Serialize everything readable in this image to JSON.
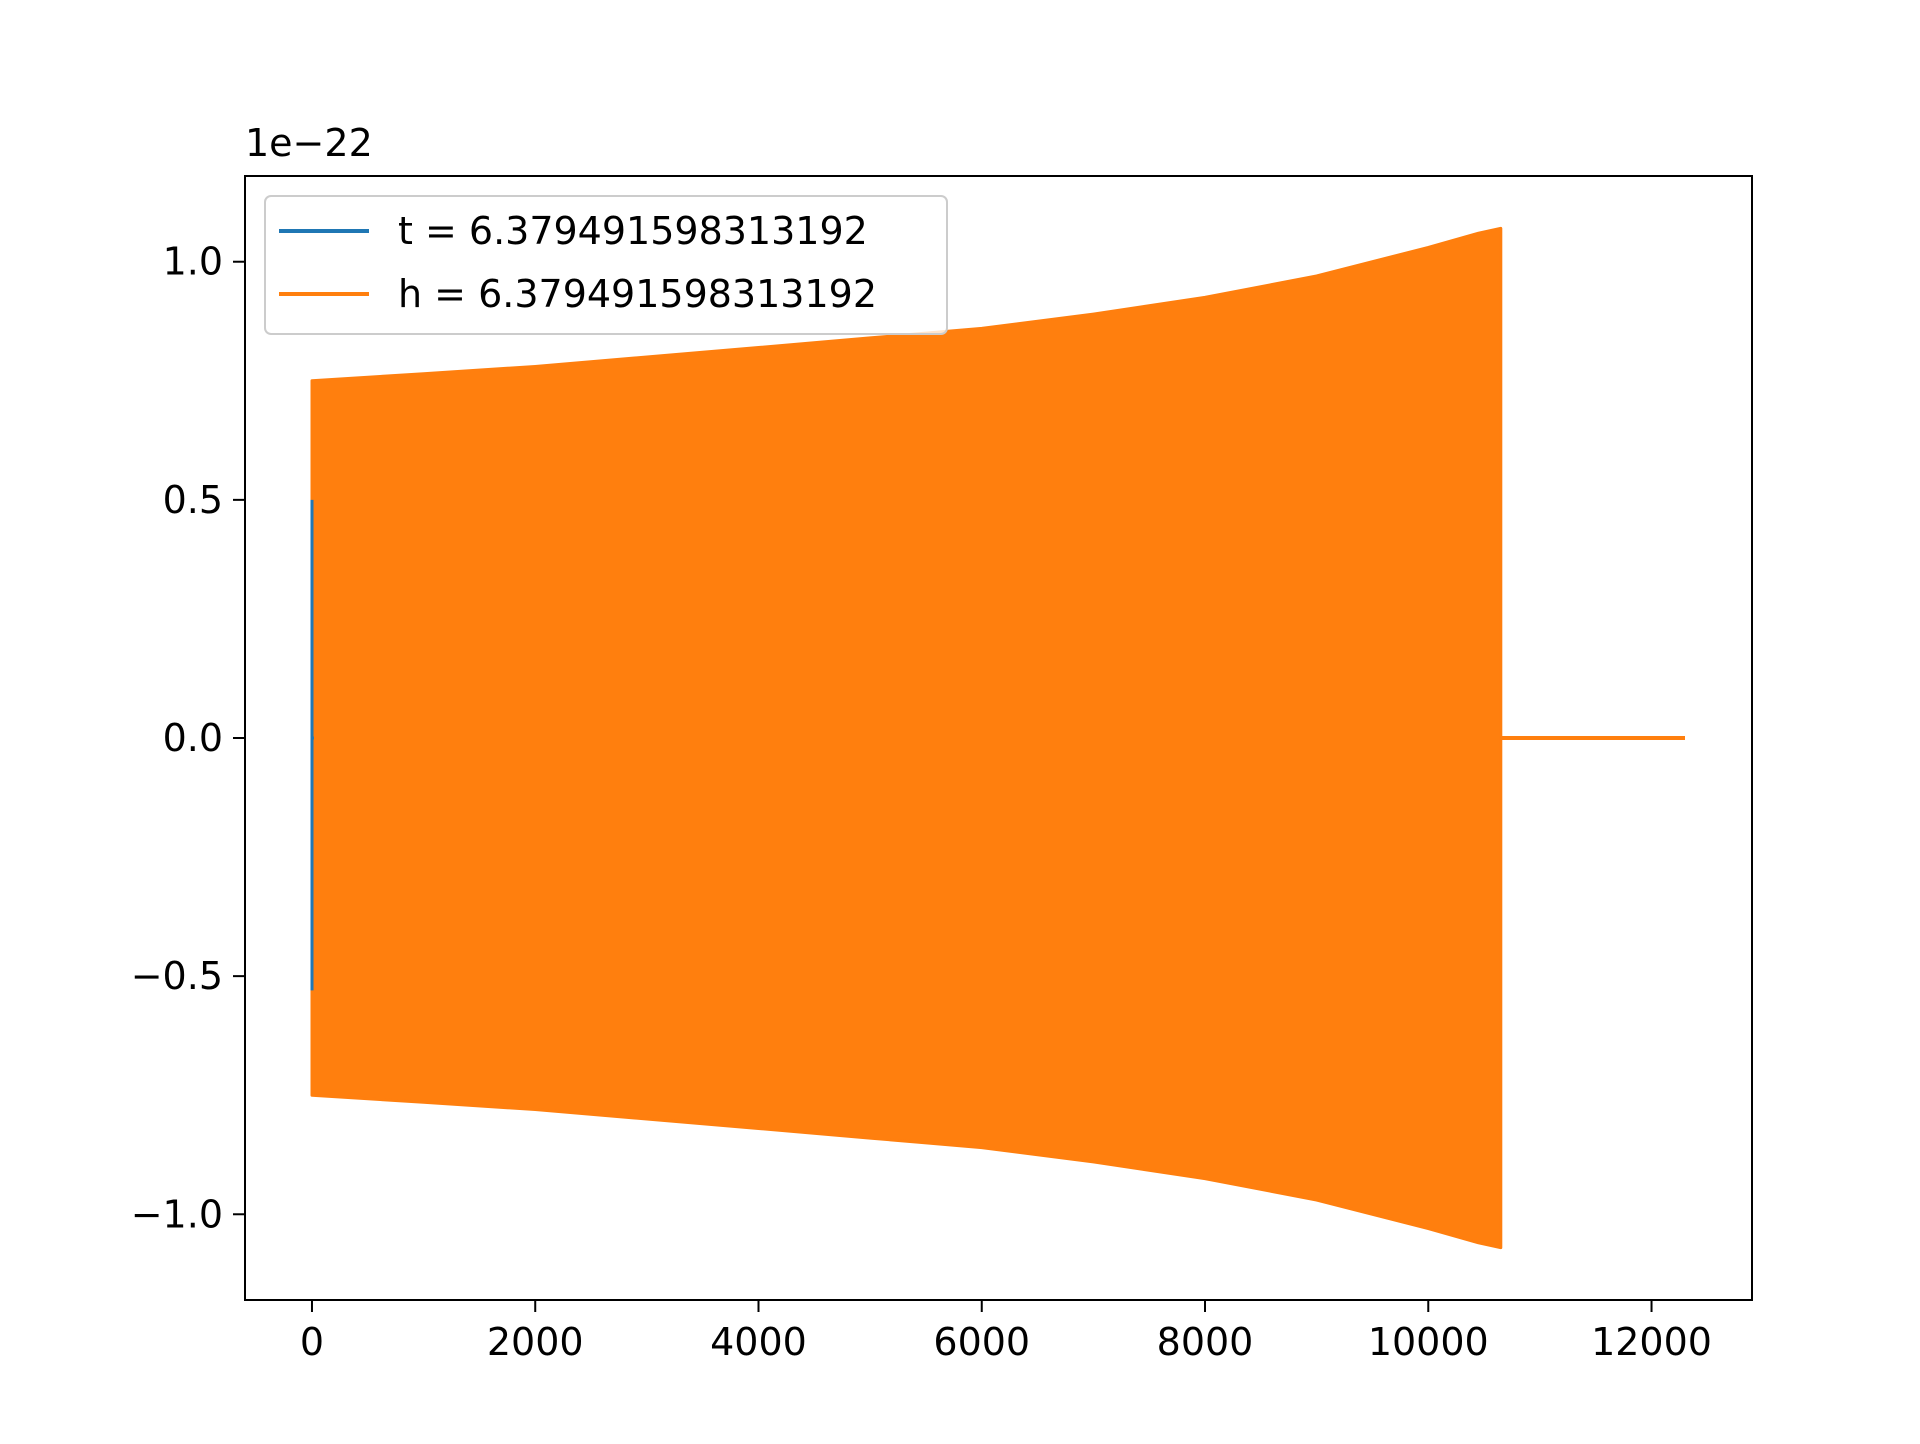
{
  "chart_data": {
    "type": "line",
    "offset_label": "1e−22",
    "y_scale_exponent": -22,
    "xlim": [
      -600,
      12900
    ],
    "ylim": [
      -1.18,
      1.18
    ],
    "x_ticks": [
      0,
      2000,
      4000,
      6000,
      8000,
      10000,
      12000
    ],
    "x_tick_labels": [
      "0",
      "2000",
      "4000",
      "6000",
      "8000",
      "10000",
      "12000"
    ],
    "y_ticks": [
      -1.0,
      -0.5,
      0.0,
      0.5,
      1.0
    ],
    "y_tick_labels": [
      "−1.0",
      "−0.5",
      "0.0",
      "0.5",
      "1.0"
    ],
    "grid": false,
    "legend_position": "top-left",
    "series": [
      {
        "name": "t = 6.379491598313192",
        "color": "#1f77b4",
        "points": [
          [
            0,
            0.5
          ],
          [
            0,
            -0.53
          ],
          [
            0,
            0.0
          ],
          [
            20,
            0.0
          ]
        ]
      },
      {
        "name": "h = 6.379491598313192",
        "color": "#ff7f0e",
        "envelope": {
          "x": [
            0,
            1000,
            2000,
            3000,
            4000,
            5000,
            6000,
            7000,
            8000,
            9000,
            10000,
            10450,
            10650
          ],
          "upper": [
            0.75,
            0.765,
            0.78,
            0.8,
            0.82,
            0.84,
            0.86,
            0.89,
            0.925,
            0.97,
            1.03,
            1.06,
            1.07
          ],
          "lower": [
            -0.75,
            -0.765,
            -0.78,
            -0.8,
            -0.82,
            -0.84,
            -0.86,
            -0.89,
            -0.925,
            -0.97,
            -1.03,
            -1.06,
            -1.07
          ]
        },
        "tail": [
          [
            10650,
            0.0
          ],
          [
            12300,
            0.0
          ]
        ]
      }
    ]
  }
}
